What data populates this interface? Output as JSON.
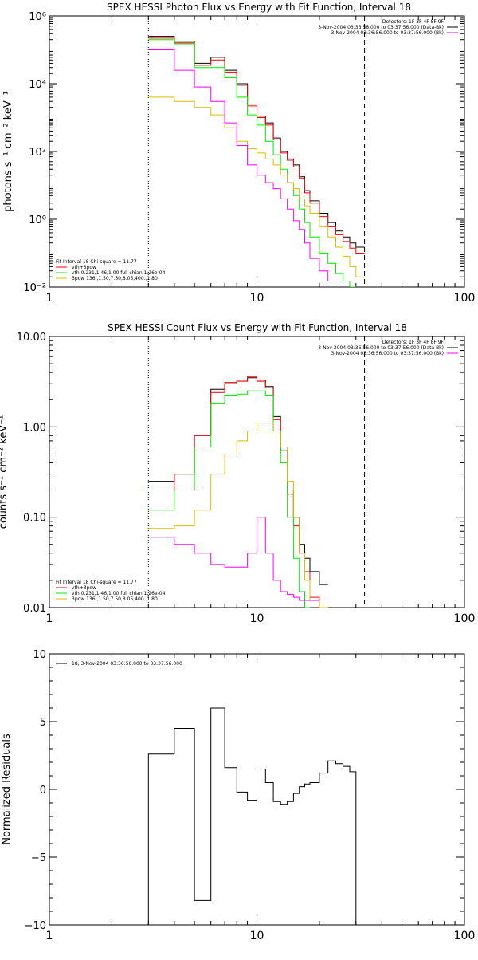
{
  "chart_data": [
    {
      "type": "line",
      "title": "SPEX HESSI Photon Flux vs Energy with Fit Function, Interval 18",
      "ylabel": "photons s⁻¹ cm⁻² keV⁻¹",
      "xscale": "log",
      "yscale": "log",
      "xlim": [
        1,
        100
      ],
      "ylim": [
        0.01,
        1000000
      ],
      "x_ticks": [
        1,
        10,
        100
      ],
      "x_tick_labels": [
        "1",
        "10",
        "100"
      ],
      "y_ticks": [
        0.01,
        1,
        100,
        10000,
        1000000
      ],
      "y_tick_labels": [
        "10⁻²",
        "10⁰",
        "10²",
        "10⁴",
        "10⁶"
      ],
      "vlines": [
        {
          "x": 3.0,
          "style": "dotted"
        },
        {
          "x": 33.0,
          "style": "dashed"
        }
      ],
      "x_edges": [
        3.0,
        4.0,
        5.0,
        6.0,
        7.0,
        8.0,
        9.0,
        10.0,
        11.0,
        12.0,
        13.0,
        14.0,
        15.0,
        16.0,
        17.0,
        18.0,
        20.0,
        22.0,
        24.0,
        26.0,
        28.0,
        30.0,
        33.0
      ],
      "legend_top": {
        "position": "top-right",
        "detectors": "Detectors: 1F 3F 4F 8F 9F",
        "entries": [
          {
            "text": "3-Nov-2004 03:36:56.000 to 03:37:56.000 (Data-Bk)",
            "color": "#000000"
          },
          {
            "text": "3-Nov-2004 03:36:56.000 to 03:37:56.000 (Bk)",
            "color": "#ff00ff"
          }
        ]
      },
      "legend_bottom": {
        "position": "bottom-left",
        "header": "Fit Interval 18    Chi-square = 11.77",
        "entries": [
          {
            "text": "vth+3pow",
            "color": "#ff0000"
          },
          {
            "text": "vth 0.231,1.46,1.00  full chian 1.26e-04",
            "color": "#00ee00"
          },
          {
            "text": "3pow 136.,1.50,7.50,8.05,400.,1.80",
            "color": "#ddbb00"
          }
        ]
      },
      "series": [
        {
          "color": "#000000",
          "values": [
            250000,
            180000,
            40000,
            60000,
            25000,
            10000,
            2500,
            1100,
            700,
            250,
            100,
            60,
            40,
            18,
            7,
            3.5,
            1.5,
            0.8,
            0.45,
            0.3,
            0.2,
            0.15
          ]
        },
        {
          "color": "#ff0000",
          "values": [
            220000,
            160000,
            35000,
            50000,
            22000,
            9000,
            2200,
            1000,
            600,
            220,
            90,
            55,
            35,
            16,
            6,
            3,
            1.2,
            0.6,
            0.35,
            0.22,
            0.14,
            0.1
          ]
        },
        {
          "color": "#00ee00",
          "values": [
            200000,
            150000,
            30000,
            30000,
            15000,
            4000,
            1200,
            600,
            200,
            80,
            30,
            12,
            5,
            2,
            0.8,
            0.3,
            0.1,
            0.05,
            0.025,
            0.015,
            0.01,
            0.005
          ]
        },
        {
          "color": "#ddbb00",
          "values": [
            4000,
            3000,
            2000,
            1200,
            500,
            200,
            120,
            90,
            60,
            40,
            20,
            12,
            8,
            4,
            2.5,
            1.5,
            0.6,
            0.3,
            0.15,
            0.08,
            0.04,
            0.02
          ]
        },
        {
          "color": "#ff00ff",
          "values": [
            100000,
            25000,
            8000,
            3000,
            700,
            150,
            40,
            20,
            12,
            8,
            4,
            2,
            0.9,
            0.5,
            0.2,
            0.07,
            0.03,
            0.015
          ]
        }
      ]
    },
    {
      "type": "line",
      "title": "SPEX HESSI Count Flux vs Energy with Fit Function, Interval 18",
      "ylabel": "counts s⁻¹ cm⁻² keV⁻¹",
      "xscale": "log",
      "yscale": "log",
      "xlim": [
        1,
        100
      ],
      "ylim": [
        0.01,
        10
      ],
      "x_ticks": [
        1,
        10,
        100
      ],
      "x_tick_labels": [
        "1",
        "10",
        "100"
      ],
      "y_ticks": [
        0.01,
        0.1,
        1,
        10
      ],
      "y_tick_labels": [
        "0.01",
        "0.10",
        "1.00",
        "10.00"
      ],
      "vlines": [
        {
          "x": 3.0,
          "style": "dotted"
        },
        {
          "x": 33.0,
          "style": "dashed"
        }
      ],
      "x_edges": [
        3.0,
        4.0,
        5.0,
        6.0,
        7.0,
        8.0,
        9.0,
        10.0,
        11.0,
        12.0,
        13.0,
        14.0,
        15.0,
        16.0,
        17.0,
        18.0,
        20.0,
        22.0,
        24.0,
        26.0,
        28.0,
        30.0,
        33.0
      ],
      "legend_top": {
        "position": "top-right",
        "detectors": "Detectors: 1F 3F 4F 8F 9F",
        "entries": [
          {
            "text": "3-Nov-2004 03:36:56.000 to 03:37:56.000 (Data-Bk)",
            "color": "#000000"
          },
          {
            "text": "3-Nov-2004 03:36:56.000 to 03:37:56.000 (Bk)",
            "color": "#ff00ff"
          }
        ]
      },
      "legend_bottom": {
        "position": "bottom-left",
        "header": "Fit Interval 18    Chi-square = 11.77",
        "entries": [
          {
            "text": "vth+3pow",
            "color": "#ff0000"
          },
          {
            "text": "vth 0.231,1.46,1.00  full chian 1.26e-04",
            "color": "#00ee00"
          },
          {
            "text": "3pow 136.,1.50,7.50,8.05,400.,1.80",
            "color": "#ddbb00"
          }
        ]
      },
      "series": [
        {
          "color": "#000000",
          "values": [
            0.25,
            0.3,
            0.8,
            2.6,
            3.0,
            3.3,
            3.5,
            3.3,
            2.8,
            1.3,
            0.55,
            0.2,
            0.1,
            0.05,
            0.035,
            0.025,
            0.018
          ]
        },
        {
          "color": "#ff0000",
          "values": [
            0.2,
            0.3,
            0.8,
            2.4,
            3.1,
            3.2,
            3.6,
            3.2,
            2.7,
            1.2,
            0.5,
            0.18,
            0.08,
            0.04,
            0.025,
            0.013,
            0.01
          ]
        },
        {
          "color": "#00ee00",
          "values": [
            0.12,
            0.2,
            0.6,
            1.8,
            2.2,
            2.3,
            2.5,
            2.5,
            2.2,
            0.9,
            0.4,
            0.1,
            0.035,
            0.015,
            0.01
          ]
        },
        {
          "color": "#ddbb00",
          "values": [
            0.075,
            0.08,
            0.12,
            0.3,
            0.5,
            0.7,
            0.9,
            1.1,
            1.1,
            0.9,
            0.6,
            0.25,
            0.1,
            0.04,
            0.02,
            0.012,
            0.01
          ]
        },
        {
          "color": "#ff00ff",
          "values": [
            0.06,
            0.05,
            0.04,
            0.03,
            0.028,
            0.028,
            0.04,
            0.1,
            0.04,
            0.02,
            0.015,
            0.014,
            0.013,
            0.012,
            0.012,
            0.012
          ]
        }
      ]
    },
    {
      "type": "line",
      "title": "",
      "ylabel": "Normalized Residuals",
      "xscale": "log",
      "yscale": "linear",
      "xlim": [
        1,
        100
      ],
      "ylim": [
        -10,
        10
      ],
      "x_ticks": [
        1,
        10,
        100
      ],
      "x_tick_labels": [
        "1",
        "10",
        "100"
      ],
      "y_ticks": [
        -10,
        -5,
        0,
        5,
        10
      ],
      "y_tick_labels": [
        "−10",
        "−5",
        "0",
        "5",
        "10"
      ],
      "legend_top": {
        "position": "top-left",
        "entries": [
          {
            "text": "18,  3-Nov-2004 03:36:56.000 to 03:37:56.000",
            "color": "#000000"
          }
        ]
      },
      "x_edges": [
        3.0,
        4.0,
        5.0,
        6.0,
        7.0,
        8.0,
        9.0,
        10.0,
        11.0,
        12.0,
        13.0,
        14.0,
        15.0,
        16.0,
        17.0,
        18.0,
        20.0,
        22.0,
        24.0,
        26.0,
        28.0,
        30.0,
        33.0
      ],
      "series": [
        {
          "color": "#000000",
          "values": [
            2.6,
            4.5,
            -8.2,
            6.0,
            1.6,
            -0.2,
            -0.8,
            1.5,
            0.5,
            -0.9,
            -1.1,
            -0.9,
            -0.3,
            0.2,
            0.4,
            0.5,
            1.2,
            2.1,
            1.9,
            1.7,
            1.3
          ],
          "extend_to_bottom": true
        }
      ]
    }
  ]
}
